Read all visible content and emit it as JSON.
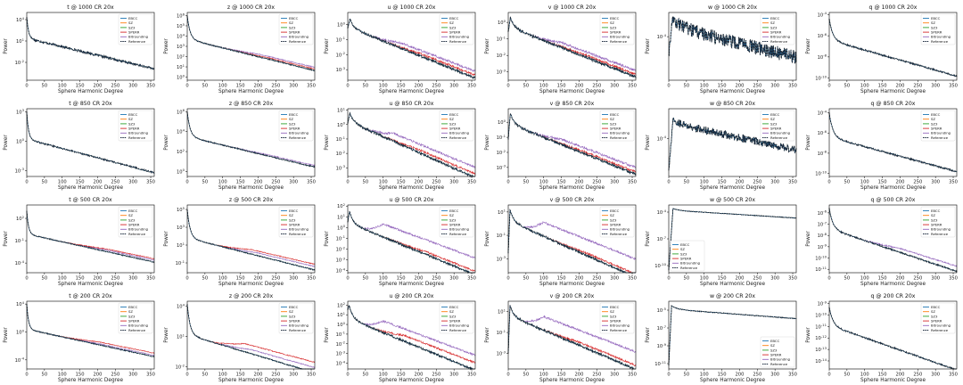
{
  "figure": {
    "x_ticks": [
      "0",
      "50",
      "100",
      "150",
      "200",
      "250",
      "300",
      "350"
    ],
    "xlabel": "Sphere Harmonic Degree",
    "ylabel": "Power",
    "legend": [
      "EBCC",
      "SZ",
      "SZ3",
      "SPERR",
      "Bitrounding",
      "Reference"
    ],
    "series_colors": {
      "EBCC": "#1f77b4",
      "SZ": "#ff7f0e",
      "SZ3": "#2ca02c",
      "SPERR": "#d62728",
      "Bitrounding": "#9467bd",
      "Reference": "#17263a"
    }
  },
  "chart_data": [
    {
      "type": "line",
      "title": "t @ 1000 CR 20x",
      "row": 0,
      "col": 0,
      "yscale": "log",
      "ylim_exp": [
        -4.5,
        5
      ],
      "yticks": [
        "10^4",
        "10^1",
        "10^-2"
      ],
      "ytick_exps": [
        4,
        1,
        -2
      ],
      "xlim": [
        0,
        360
      ],
      "legend_pos": "top-right",
      "profile": {
        "start": 4.4,
        "drop": 3.0,
        "tau": 5,
        "slope": -0.012,
        "noise": 0.15,
        "div": {}
      }
    },
    {
      "type": "line",
      "title": "z @ 1000 CR 20x",
      "row": 0,
      "col": 1,
      "yscale": "log",
      "ylim_exp": [
        -0.3,
        6.3
      ],
      "yticks": [
        "10^6",
        "10^5",
        "10^4",
        "10^3",
        "10^2",
        "10^1",
        "10^0"
      ],
      "ytick_exps": [
        6,
        5,
        4,
        3,
        2,
        1,
        0
      ],
      "xlim": [
        0,
        360
      ],
      "legend_pos": "top-right",
      "profile": {
        "start": 6,
        "drop": 2.3,
        "tau": 8,
        "slope": -0.0085,
        "noise": 0.05,
        "div": {
          "Bitrounding": [
            0.25,
            200
          ],
          "SPERR": [
            0.12,
            220
          ]
        }
      }
    },
    {
      "type": "line",
      "title": "u @ 1000 CR 20x",
      "row": 0,
      "col": 2,
      "yscale": "log",
      "ylim_exp": [
        -3.7,
        0.8
      ],
      "yticks": [
        "10^0",
        "10^-1",
        "10^-2",
        "10^-3"
      ],
      "ytick_exps": [
        0,
        -1,
        -2,
        -3
      ],
      "xlim": [
        0,
        360
      ],
      "legend_pos": "top-right",
      "profile": {
        "start": -0.3,
        "peak": 0.4,
        "peakx": 6,
        "drop": 0.6,
        "tau": 10,
        "slope": -0.0095,
        "noise": 0.08,
        "div": {
          "Bitrounding": [
            0.35,
            150
          ],
          "SPERR": [
            0.15,
            200
          ]
        }
      }
    },
    {
      "type": "line",
      "title": "v @ 1000 CR 20x",
      "row": 0,
      "col": 3,
      "yscale": "log",
      "ylim_exp": [
        -3.5,
        0.6
      ],
      "yticks": [
        "10^0",
        "10^-1",
        "10^-2",
        "10^-3"
      ],
      "ytick_exps": [
        0,
        -1,
        -2,
        -3
      ],
      "xlim": [
        0,
        360
      ],
      "legend_pos": "top-right",
      "profile": {
        "start": -0.6,
        "peak": 0.3,
        "peakx": 6,
        "drop": 0.6,
        "tau": 10,
        "slope": -0.0085,
        "noise": 0.08,
        "div": {
          "Bitrounding": [
            0.3,
            150
          ],
          "SPERR": [
            0.12,
            200
          ]
        }
      }
    },
    {
      "type": "line",
      "title": "w @ 1000 CR 20x",
      "row": 0,
      "col": 4,
      "yscale": "log",
      "ylim_exp": [
        -4.9,
        -3.5
      ],
      "yticks": [
        "10^-4"
      ],
      "ytick_exps": [
        -4
      ],
      "xlim": [
        0,
        360
      ],
      "legend_pos": "top-right",
      "profile": {
        "start": -4.4,
        "peak": -3.65,
        "peakx": 10,
        "drop": 0.15,
        "tau": 40,
        "slope": -0.0018,
        "noise": 0.14,
        "div": {}
      }
    },
    {
      "type": "line",
      "title": "q @ 1000 CR 20x",
      "row": 0,
      "col": 5,
      "yscale": "log",
      "ylim_exp": [
        -10.2,
        -3.8
      ],
      "yticks": [
        "10^-4",
        "10^-6",
        "10^-8",
        "10^-10"
      ],
      "ytick_exps": [
        -4,
        -6,
        -8,
        -10
      ],
      "xlim": [
        0,
        360
      ],
      "legend_pos": "top-right",
      "profile": {
        "start": -4.4,
        "drop": 2.0,
        "tau": 10,
        "slope": -0.0095,
        "noise": 0.07,
        "div": {}
      }
    },
    {
      "type": "line",
      "title": "t @ 850 CR 20x",
      "row": 1,
      "col": 0,
      "yscale": "log",
      "ylim_exp": [
        -3.6,
        3.3
      ],
      "yticks": [
        "10^3",
        "10^0",
        "10^-3"
      ],
      "ytick_exps": [
        3,
        0,
        -3
      ],
      "xlim": [
        0,
        360
      ],
      "legend_pos": "top-right",
      "profile": {
        "start": 3,
        "drop": 2.8,
        "tau": 5,
        "slope": -0.0095,
        "noise": 0.07,
        "div": {}
      }
    },
    {
      "type": "line",
      "title": "z @ 850 CR 20x",
      "row": 1,
      "col": 1,
      "yscale": "log",
      "ylim_exp": [
        -0.5,
        6.3
      ],
      "yticks": [
        "10^6",
        "10^4",
        "10^2",
        "10^0"
      ],
      "ytick_exps": [
        6,
        4,
        2,
        0
      ],
      "xlim": [
        0,
        360
      ],
      "legend_pos": "top-right",
      "profile": {
        "start": 6,
        "drop": 2.5,
        "tau": 8,
        "slope": -0.0085,
        "noise": 0.05,
        "div": {
          "Bitrounding": [
            0.12,
            220
          ]
        }
      }
    },
    {
      "type": "line",
      "title": "u @ 850 CR 20x",
      "row": 1,
      "col": 2,
      "yscale": "log",
      "ylim_exp": [
        -3.6,
        1.1
      ],
      "yticks": [
        "10^1",
        "10^0",
        "10^-1",
        "10^-2",
        "10^-3"
      ],
      "ytick_exps": [
        1,
        0,
        -1,
        -2,
        -3
      ],
      "xlim": [
        0,
        360
      ],
      "legend_pos": "top-right",
      "profile": {
        "start": 0.1,
        "peak": 0.8,
        "peakx": 6,
        "drop": 0.6,
        "tau": 10,
        "slope": -0.011,
        "noise": 0.08,
        "div": {
          "Bitrounding": [
            0.55,
            130
          ],
          "SPERR": [
            0.2,
            200
          ]
        }
      }
    },
    {
      "type": "line",
      "title": "v @ 850 CR 20x",
      "row": 1,
      "col": 3,
      "yscale": "log",
      "ylim_exp": [
        -3.6,
        0.9
      ],
      "yticks": [
        "10^0",
        "10^-1",
        "10^-2",
        "10^-3"
      ],
      "ytick_exps": [
        0,
        -1,
        -2,
        -3
      ],
      "xlim": [
        0,
        360
      ],
      "legend_pos": "top-right",
      "profile": {
        "start": -1.1,
        "peak": 0.6,
        "peakx": 6,
        "drop": 0.7,
        "tau": 10,
        "slope": -0.0095,
        "noise": 0.08,
        "div": {
          "Bitrounding": [
            0.35,
            150
          ],
          "SPERR": [
            0.12,
            200
          ]
        }
      }
    },
    {
      "type": "line",
      "title": "w @ 850 CR 20x",
      "row": 1,
      "col": 4,
      "yscale": "log",
      "ylim_exp": [
        -4.9,
        -3.3
      ],
      "yticks": [
        "10^-4"
      ],
      "ytick_exps": [
        -4
      ],
      "xlim": [
        0,
        360
      ],
      "legend_pos": "top-right",
      "profile": {
        "start": -4.8,
        "peak": -3.55,
        "peakx": 12,
        "drop": 0.1,
        "tau": 30,
        "slope": -0.0018,
        "noise": 0.09,
        "div": {}
      }
    },
    {
      "type": "line",
      "title": "q @ 850 CR 20x",
      "row": 1,
      "col": 5,
      "yscale": "log",
      "ylim_exp": [
        -10.3,
        -3.6
      ],
      "yticks": [
        "10^-4",
        "10^-6",
        "10^-8",
        "10^-10"
      ],
      "ytick_exps": [
        -4,
        -6,
        -8,
        -10
      ],
      "xlim": [
        0,
        360
      ],
      "legend_pos": "top-right",
      "profile": {
        "start": -4,
        "drop": 2.4,
        "tau": 10,
        "slope": -0.0095,
        "noise": 0.07,
        "div": {}
      }
    },
    {
      "type": "line",
      "title": "t @ 500 CR 20x",
      "row": 2,
      "col": 0,
      "yscale": "log",
      "ylim_exp": [
        -5.3,
        3.8
      ],
      "yticks": [
        "10^2",
        "10^-1",
        "10^-4"
      ],
      "ytick_exps": [
        2,
        -1,
        -4
      ],
      "xlim": [
        0,
        360
      ],
      "legend_pos": "top-right",
      "profile": {
        "start": 3,
        "drop": 3.1,
        "tau": 5,
        "slope": -0.0105,
        "noise": 0.06,
        "div": {
          "SPERR": [
            0.35,
            220
          ],
          "Bitrounding": [
            0.2,
            220
          ]
        }
      }
    },
    {
      "type": "line",
      "title": "z @ 500 CR 20x",
      "row": 2,
      "col": 1,
      "yscale": "log",
      "ylim_exp": [
        -2.1,
        5.5
      ],
      "yticks": [
        "10^5",
        "10^3",
        "10^1",
        "10^-1"
      ],
      "ytick_exps": [
        5,
        3,
        1,
        -1
      ],
      "xlim": [
        0,
        360
      ],
      "legend_pos": "top-right",
      "profile": {
        "start": 5,
        "drop": 3.2,
        "tau": 8,
        "slope": -0.01,
        "noise": 0.05,
        "div": {
          "SPERR": [
            0.5,
            180
          ],
          "Bitrounding": [
            0.3,
            200
          ]
        }
      }
    },
    {
      "type": "line",
      "title": "u @ 500 CR 20x",
      "row": 2,
      "col": 2,
      "yscale": "log",
      "ylim_exp": [
        -4.2,
        2.1
      ],
      "yticks": [
        "10^2",
        "10^1",
        "10^0",
        "10^-1",
        "10^-2",
        "10^-3",
        "10^-4"
      ],
      "ytick_exps": [
        2,
        1,
        0,
        -1,
        -2,
        -3,
        -4
      ],
      "xlim": [
        0,
        360
      ],
      "legend_pos": "top-right",
      "profile": {
        "start": 0.5,
        "peak": 1.5,
        "peakx": 5,
        "drop": 1.1,
        "tau": 10,
        "slope": -0.0135,
        "noise": 0.09,
        "div": {
          "Bitrounding": [
            1.2,
            100
          ],
          "SPERR": [
            0.25,
            220
          ]
        }
      }
    },
    {
      "type": "line",
      "title": "v @ 500 CR 20x",
      "row": 2,
      "col": 3,
      "yscale": "log",
      "ylim_exp": [
        -4.2,
        1.6
      ],
      "yticks": [
        "10^1",
        "10^-1",
        "10^-3"
      ],
      "ytick_exps": [
        1,
        -1,
        -3
      ],
      "xlim": [
        0,
        360
      ],
      "legend_pos": "top-right",
      "profile": {
        "start": -2.5,
        "peak": 1.2,
        "peakx": 5,
        "drop": 1.0,
        "tau": 10,
        "slope": -0.0135,
        "noise": 0.09,
        "div": {
          "Bitrounding": [
            1.2,
            100
          ],
          "SPERR": [
            0.2,
            220
          ]
        }
      }
    },
    {
      "type": "line",
      "title": "w @ 500 CR 20x",
      "row": 2,
      "col": 4,
      "yscale": "log",
      "ylim_exp": [
        -10.8,
        -3.2
      ],
      "yticks": [
        "10^-4",
        "10^-7",
        "10^-10"
      ],
      "ytick_exps": [
        -4,
        -7,
        -10
      ],
      "xlim": [
        0,
        360
      ],
      "legend_pos": "lower-left",
      "profile": {
        "start": -10.5,
        "peak": -3.6,
        "peakx": 12,
        "drop": 0.2,
        "tau": 15,
        "slope": -0.0025,
        "noise": 0.03,
        "div": {}
      }
    },
    {
      "type": "line",
      "title": "q @ 500 CR 20x",
      "row": 2,
      "col": 5,
      "yscale": "log",
      "ylim_exp": [
        -11.3,
        -5.3
      ],
      "yticks": [
        "10^-6",
        "10^-7",
        "10^-8",
        "10^-9",
        "10^-10",
        "10^-11"
      ],
      "ytick_exps": [
        -6,
        -7,
        -8,
        -9,
        -10,
        -11
      ],
      "xlim": [
        0,
        360
      ],
      "legend_pos": "top-right",
      "profile": {
        "start": -5.6,
        "drop": 1.8,
        "tau": 10,
        "slope": -0.0105,
        "noise": 0.06,
        "div": {
          "Bitrounding": [
            0.35,
            200
          ]
        }
      }
    },
    {
      "type": "line",
      "title": "t @ 200 CR 20x",
      "row": 3,
      "col": 0,
      "yscale": "log",
      "ylim_exp": [
        -5.3,
        4.4
      ],
      "yticks": [
        "10^4",
        "10^0",
        "10^-4"
      ],
      "ytick_exps": [
        4,
        0,
        -4
      ],
      "xlim": [
        0,
        360
      ],
      "legend_pos": "top-right",
      "profile": {
        "start": 4,
        "drop": 3.6,
        "tau": 5,
        "slope": -0.011,
        "noise": 0.06,
        "div": {
          "SPERR": [
            0.4,
            200
          ],
          "Bitrounding": [
            0.15,
            200
          ]
        }
      }
    },
    {
      "type": "line",
      "title": "z @ 200 CR 20x",
      "row": 3,
      "col": 1,
      "yscale": "log",
      "ylim_exp": [
        -2.2,
        4.5
      ],
      "yticks": [
        "10^4",
        "10^1",
        "10^-2"
      ],
      "ytick_exps": [
        4,
        1,
        -2
      ],
      "xlim": [
        0,
        360
      ],
      "legend_pos": "top-right",
      "profile": {
        "start": 4.2,
        "drop": 3.0,
        "tau": 8,
        "slope": -0.0105,
        "noise": 0.05,
        "div": {
          "SPERR": [
            0.8,
            160
          ],
          "Bitrounding": [
            0.4,
            180
          ]
        }
      }
    },
    {
      "type": "line",
      "title": "u @ 200 CR 20x",
      "row": 3,
      "col": 2,
      "yscale": "log",
      "ylim_exp": [
        -4.6,
        2.4
      ],
      "yticks": [
        "10^2",
        "10^1",
        "10^0",
        "10^-1",
        "10^-2",
        "10^-3",
        "10^-4"
      ],
      "ytick_exps": [
        2,
        1,
        0,
        -1,
        -2,
        -3,
        -4
      ],
      "xlim": [
        0,
        360
      ],
      "legend_pos": "top-right",
      "profile": {
        "start": 1.5,
        "peak": 2.0,
        "peakx": 4,
        "drop": 1.4,
        "tau": 10,
        "slope": -0.015,
        "noise": 0.1,
        "div": {
          "Bitrounding": [
            1.2,
            100
          ],
          "SPERR": [
            0.6,
            160
          ]
        }
      }
    },
    {
      "type": "line",
      "title": "v @ 200 CR 20x",
      "row": 3,
      "col": 3,
      "yscale": "log",
      "ylim_exp": [
        -4.5,
        2.0
      ],
      "yticks": [
        "10^1",
        "10^-1",
        "10^-3"
      ],
      "ytick_exps": [
        1,
        -1,
        -3
      ],
      "xlim": [
        0,
        360
      ],
      "legend_pos": "top-right",
      "profile": {
        "start": -3.0,
        "peak": 1.6,
        "peakx": 5,
        "drop": 1.0,
        "tau": 10,
        "slope": -0.0145,
        "noise": 0.1,
        "div": {
          "Bitrounding": [
            1.3,
            100
          ],
          "SPERR": [
            0.3,
            200
          ]
        }
      }
    },
    {
      "type": "line",
      "title": "w @ 200 CR 20x",
      "row": 3,
      "col": 4,
      "yscale": "log",
      "ylim_exp": [
        -11.6,
        -4.0
      ],
      "yticks": [
        "10^-5",
        "10^-7",
        "10^-9",
        "10^-11"
      ],
      "ytick_exps": [
        -5,
        -7,
        -9,
        -11
      ],
      "xlim": [
        0,
        360
      ],
      "legend_pos": "lower-right",
      "profile": {
        "start": -11.2,
        "peak": -4.5,
        "peakx": 8,
        "drop": 0.4,
        "tau": 15,
        "slope": -0.003,
        "noise": 0.04,
        "div": {}
      }
    },
    {
      "type": "line",
      "title": "q @ 200 CR 20x",
      "row": 3,
      "col": 5,
      "yscale": "log",
      "ylim_exp": [
        -14.7,
        -8.8
      ],
      "yticks": [
        "10^-9",
        "10^-10",
        "10^-11",
        "10^-12",
        "10^-13",
        "10^-14"
      ],
      "ytick_exps": [
        -9,
        -10,
        -11,
        -12,
        -13,
        -14
      ],
      "xlim": [
        0,
        360
      ],
      "legend_pos": "top-right",
      "profile": {
        "start": -9.3,
        "drop": 1.6,
        "tau": 10,
        "slope": -0.0108,
        "noise": 0.06,
        "div": {}
      }
    }
  ]
}
